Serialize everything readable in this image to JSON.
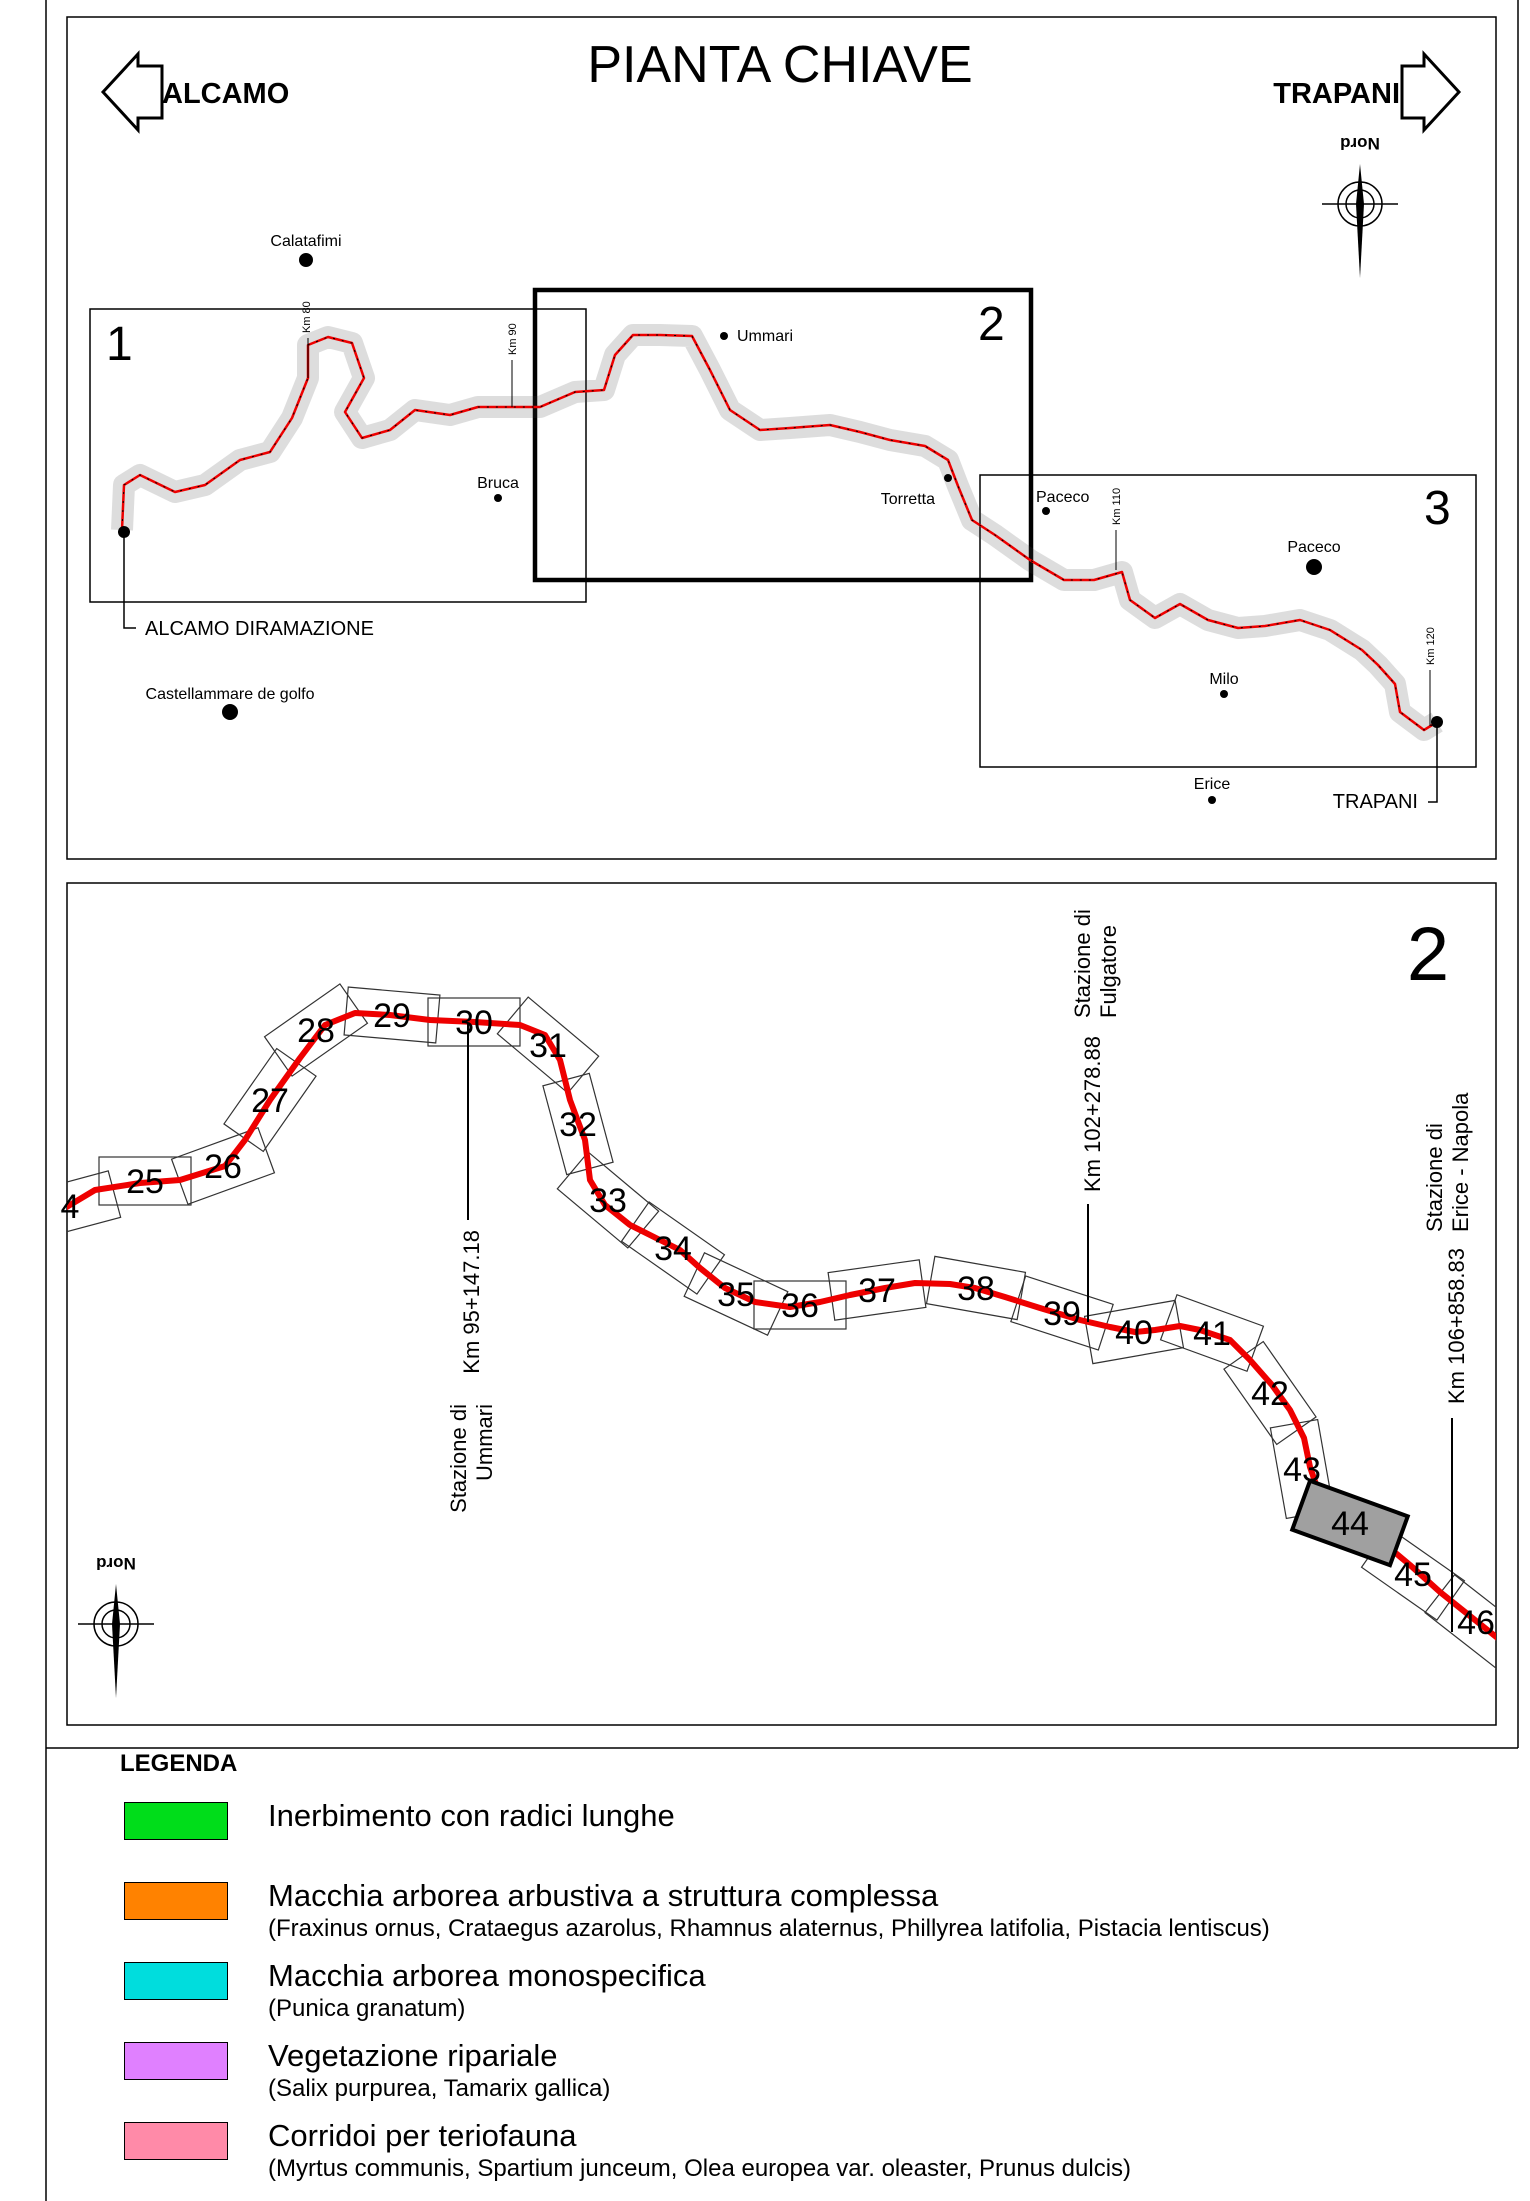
{
  "key_map": {
    "title": "PIANTA CHIAVE",
    "left_direction": "ALCAMO",
    "right_direction": "TRAPANI",
    "north_label": "Nord",
    "sections": [
      "1",
      "2",
      "3"
    ],
    "places": [
      {
        "name": "Calatafimi"
      },
      {
        "name": "Ummari"
      },
      {
        "name": "Bruca"
      },
      {
        "name": "Torretta"
      },
      {
        "name": "Paceco"
      },
      {
        "name": "Paceco"
      },
      {
        "name": "Milo"
      },
      {
        "name": "Erice"
      },
      {
        "name": "Castellammare de golfo"
      }
    ],
    "km_markers": [
      "Km 80",
      "Km 90",
      "Km 110",
      "Km 120"
    ],
    "endpoints": [
      "ALCAMO DIRAMAZIONE",
      "TRAPANI"
    ]
  },
  "detail_map": {
    "section_number": "2",
    "north_label": "Nord",
    "sheet_numbers": [
      "4",
      "25",
      "26",
      "27",
      "28",
      "29",
      "30",
      "31",
      "32",
      "33",
      "34",
      "35",
      "36",
      "37",
      "38",
      "39",
      "40",
      "41",
      "42",
      "43",
      "44",
      "45",
      "46"
    ],
    "stations": [
      {
        "name_line1": "Stazione di",
        "name_line2": "Ummari",
        "km": "Km 95+147.18"
      },
      {
        "name_line1": "Stazione di",
        "name_line2": "Fulgatore",
        "km": "Km 102+278.88"
      },
      {
        "name_line1": "Stazione di",
        "name_line2": "Erice - Napola",
        "km": "Km 106+858.83"
      }
    ],
    "highlighted_sheet": "44"
  },
  "legend": {
    "title": "LEGENDA",
    "items": [
      {
        "label": "Inerbimento con radici lunghe",
        "species": "",
        "color": "#00dd1a"
      },
      {
        "label": "Macchia arborea arbustiva a struttura complessa",
        "species": "(Fraxinus ornus, Crataegus azarolus, Rhamnus alaternus, Phillyrea latifolia, Pistacia lentiscus)",
        "color": "#ff8200"
      },
      {
        "label": "Macchia arborea monospecifica",
        "species": "(Punica granatum)",
        "color": "#00dddd"
      },
      {
        "label": "Vegetazione ripariale",
        "species": "(Salix purpurea, Tamarix gallica)",
        "color": "#e080ff"
      },
      {
        "label": "Corridoi per teriofauna",
        "species": "(Myrtus communis, Spartium junceum, Olea europea var. oleaster, Prunus dulcis)",
        "color": "#ff8aa8"
      }
    ]
  },
  "colors": {
    "route": "#ee0000",
    "highlight_fill": "#a0a0a0"
  }
}
